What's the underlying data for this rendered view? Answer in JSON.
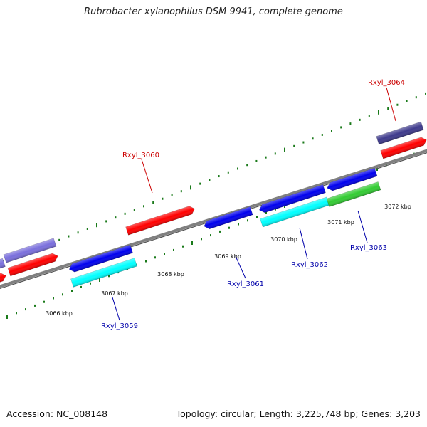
{
  "title": "Rubrobacter xylanophilus DSM 9941, complete genome",
  "footer": {
    "accession": "Accession: NC_008148",
    "summary": "Topology: circular; Length: 3,225,748 bp; Genes: 3,203"
  },
  "colors": {
    "backbone": "#808080",
    "ticks": "#1a7a1a",
    "forward_label": "#cc0000",
    "reverse_label": "#0000aa",
    "red": "#ff0000",
    "blue": "#0000ee",
    "cyan": "#00ffff",
    "green": "#33cc33",
    "lavender": "#7a6fdc",
    "slate": "#3e3a8c"
  },
  "scale_labels": [
    "3066 kbp",
    "3067 kbp",
    "3068 kbp",
    "3069 kbp",
    "3070 kbp",
    "3071 kbp",
    "3072 kbp"
  ],
  "gene_labels": [
    {
      "text": "Rxyl_3060",
      "strand": "forward"
    },
    {
      "text": "Rxyl_3064",
      "strand": "forward"
    },
    {
      "text": "Rxyl_3059",
      "strand": "reverse"
    },
    {
      "text": "Rxyl_3061",
      "strand": "reverse"
    },
    {
      "text": "Rxyl_3062",
      "strand": "reverse"
    },
    {
      "text": "Rxyl_3063",
      "strand": "reverse"
    }
  ]
}
